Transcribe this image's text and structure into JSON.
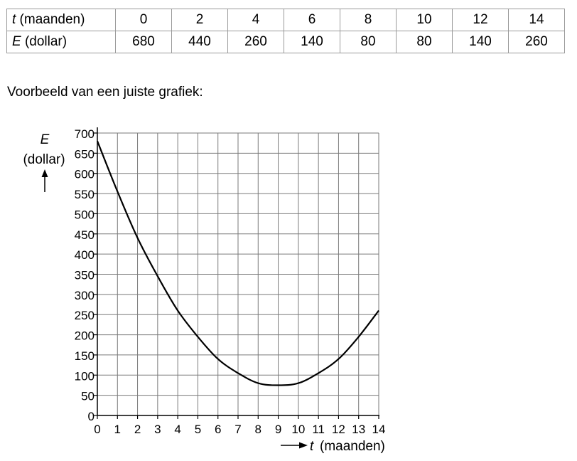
{
  "table": {
    "row1": {
      "var": "t",
      "unit": " (maanden)",
      "values": [
        "0",
        "2",
        "4",
        "6",
        "8",
        "10",
        "12",
        "14"
      ]
    },
    "row2": {
      "var": "E",
      "unit": " (dollar)",
      "values": [
        "680",
        "440",
        "260",
        "140",
        "80",
        "80",
        "140",
        "260"
      ]
    }
  },
  "caption": "Voorbeeld van een juiste grafiek:",
  "chart_data": {
    "type": "line",
    "title": "",
    "xlabel_var": "t",
    "xlabel_unit": "(maanden)",
    "ylabel_var": "E",
    "ylabel_unit": "(dollar)",
    "xlim": [
      0,
      14
    ],
    "ylim": [
      0,
      700
    ],
    "x_ticks": [
      0,
      1,
      2,
      3,
      4,
      5,
      6,
      7,
      8,
      9,
      10,
      11,
      12,
      13,
      14
    ],
    "y_ticks": [
      0,
      50,
      100,
      150,
      200,
      250,
      300,
      350,
      400,
      450,
      500,
      550,
      600,
      650,
      700
    ],
    "grid": true,
    "series": [
      {
        "x": [
          0,
          1,
          2,
          3,
          4,
          5,
          6,
          7,
          8,
          9,
          10,
          11,
          12,
          13,
          14
        ],
        "y": [
          680,
          555,
          440,
          345,
          260,
          195,
          140,
          105,
          80,
          75,
          80,
          105,
          140,
          195,
          260
        ]
      }
    ],
    "colors": {
      "line": "#000000",
      "grid": "#7a7a7a"
    }
  }
}
